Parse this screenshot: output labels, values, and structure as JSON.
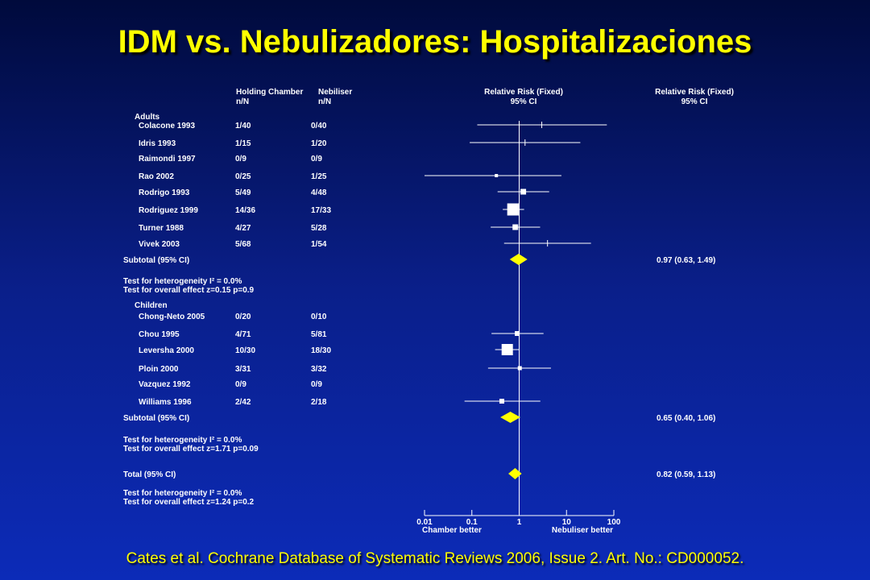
{
  "slide": {
    "title": "IDM vs. Nebulizadores: Hospitalizaciones",
    "citation": "Cates et al. Cochrane Database of Systematic Reviews 2006, Issue 2. Art. No.: CD000052."
  },
  "colors": {
    "title": "#ffff00",
    "diamond": "#ffff00",
    "marks": "#ffffff",
    "background_top": "#000a3c",
    "background_bottom": "#0c2bb8"
  },
  "chart_data": {
    "type": "forest",
    "headers": {
      "group1_line1": "Holding Chamber",
      "group1_line2": "n/N",
      "group2_line1": "Nebiliser",
      "group2_line2": "n/N",
      "plot_line1": "Relative Risk (Fixed)",
      "plot_line2": "95% CI",
      "effect_line1": "Relative Risk (Fixed)",
      "effect_line2": "95% CI"
    },
    "x_scale": "log",
    "xlim": [
      0.01,
      100
    ],
    "x_ticks": [
      "0.01",
      "0.1",
      "1",
      "10",
      "100"
    ],
    "x_label_left": "Chamber better",
    "x_label_right": "Nebuliser better",
    "sections": [
      {
        "label": "Adults",
        "studies": [
          {
            "name": "Colacone 1993",
            "chamber": "1/40",
            "nebuliser": "0/40",
            "rr": 3.0,
            "lo": 0.13,
            "hi": 71.2,
            "weight": 0
          },
          {
            "name": "Idris 1993",
            "chamber": "1/15",
            "nebuliser": "1/20",
            "rr": 1.33,
            "lo": 0.09,
            "hi": 19.6,
            "weight": 0
          },
          {
            "name": "Raimondi 1997",
            "chamber": "0/9",
            "nebuliser": "0/9"
          },
          {
            "name": "Rao 2002",
            "chamber": "0/25",
            "nebuliser": "1/25",
            "rr": 0.33,
            "lo": 0.01,
            "hi": 7.8,
            "weight": 1
          },
          {
            "name": "Rodrigo 1993",
            "chamber": "5/49",
            "nebuliser": "4/48",
            "rr": 1.22,
            "lo": 0.35,
            "hi": 4.3,
            "weight": 4
          },
          {
            "name": "Rodriguez 1999",
            "chamber": "14/36",
            "nebuliser": "17/33",
            "rr": 0.75,
            "lo": 0.45,
            "hi": 1.27,
            "weight": 12
          },
          {
            "name": "Turner 1988",
            "chamber": "4/27",
            "nebuliser": "5/28",
            "rr": 0.83,
            "lo": 0.25,
            "hi": 2.77,
            "weight": 4
          },
          {
            "name": "Vivek 2003",
            "chamber": "5/68",
            "nebuliser": "1/54",
            "rr": 3.97,
            "lo": 0.48,
            "hi": 32.9,
            "weight": 0
          }
        ],
        "subtotal": {
          "label": "Subtotal (95% CI)",
          "rr": 0.97,
          "lo": 0.63,
          "hi": 1.49,
          "text": "0.97 (0.63, 1.49)"
        },
        "tests": [
          "Test for heterogeneity I² = 0.0%",
          "Test for overall effect z=0.15  p=0.9"
        ]
      },
      {
        "label": "Children",
        "studies": [
          {
            "name": "Chong-Neto 2005",
            "chamber": "0/20",
            "nebuliser": "0/10"
          },
          {
            "name": "Chou 1995",
            "chamber": "4/71",
            "nebuliser": "5/81",
            "rr": 0.91,
            "lo": 0.26,
            "hi": 3.27,
            "weight": 3
          },
          {
            "name": "Leversha 2000",
            "chamber": "10/30",
            "nebuliser": "18/30",
            "rr": 0.56,
            "lo": 0.31,
            "hi": 1.0,
            "weight": 11
          },
          {
            "name": "Ploin 2000",
            "chamber": "3/31",
            "nebuliser": "3/32",
            "rr": 1.03,
            "lo": 0.22,
            "hi": 4.7,
            "weight": 2
          },
          {
            "name": "Vazquez 1992",
            "chamber": "0/9",
            "nebuliser": "0/9"
          },
          {
            "name": "Williams 1996",
            "chamber": "2/42",
            "nebuliser": "2/18",
            "rr": 0.43,
            "lo": 0.07,
            "hi": 2.8,
            "weight": 3
          }
        ],
        "subtotal": {
          "label": "Subtotal (95% CI)",
          "rr": 0.65,
          "lo": 0.4,
          "hi": 1.06,
          "text": "0.65 (0.40, 1.06)"
        },
        "tests": [
          "Test for heterogeneity I² = 0.0%",
          "Test for overall effect z=1.71  p=0.09"
        ]
      }
    ],
    "total": {
      "label": "Total (95% CI)",
      "rr": 0.82,
      "lo": 0.59,
      "hi": 1.13,
      "text": "0.82 (0.59, 1.13)"
    },
    "total_tests": [
      "Test for heterogeneity I² = 0.0%",
      "Test for overall effect z=1.24  p=0.2"
    ]
  }
}
